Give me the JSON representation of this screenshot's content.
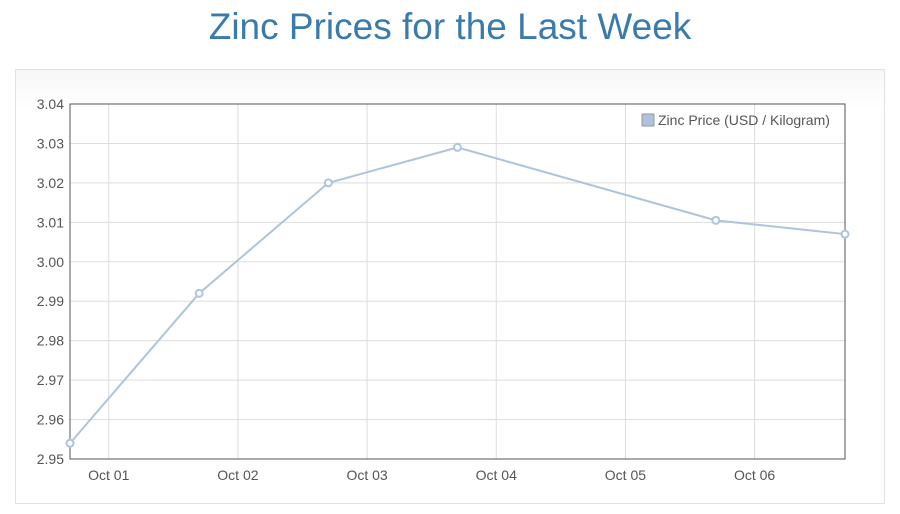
{
  "title": "Zinc Prices for the Last Week",
  "colors": {
    "title": "#3a7bab",
    "series": "#afc4dc",
    "grid": "#dddddd",
    "axis": "#555555"
  },
  "chart_data": {
    "type": "line",
    "title": "",
    "xlabel": "",
    "ylabel": "",
    "x_tick_labels": [
      "Oct 01",
      "Oct 02",
      "Oct 03",
      "Oct 04",
      "Oct 05",
      "Oct 06"
    ],
    "x_tick_positions": [
      1.0,
      2.0,
      3.0,
      4.0,
      5.0,
      6.0
    ],
    "xlim": [
      0.7,
      6.7
    ],
    "ylim": [
      2.95,
      3.04
    ],
    "y_ticks": [
      "2.95",
      "2.96",
      "2.97",
      "2.98",
      "2.99",
      "3.00",
      "3.01",
      "3.02",
      "3.03",
      "3.04"
    ],
    "grid": true,
    "legend_position": "top-right",
    "series": [
      {
        "name": "Zinc Price (USD / Kilogram)",
        "x": [
          0.7,
          1.7,
          2.7,
          3.7,
          5.7,
          6.7
        ],
        "y": [
          2.954,
          2.992,
          3.02,
          3.029,
          3.0105,
          3.007
        ]
      }
    ]
  }
}
